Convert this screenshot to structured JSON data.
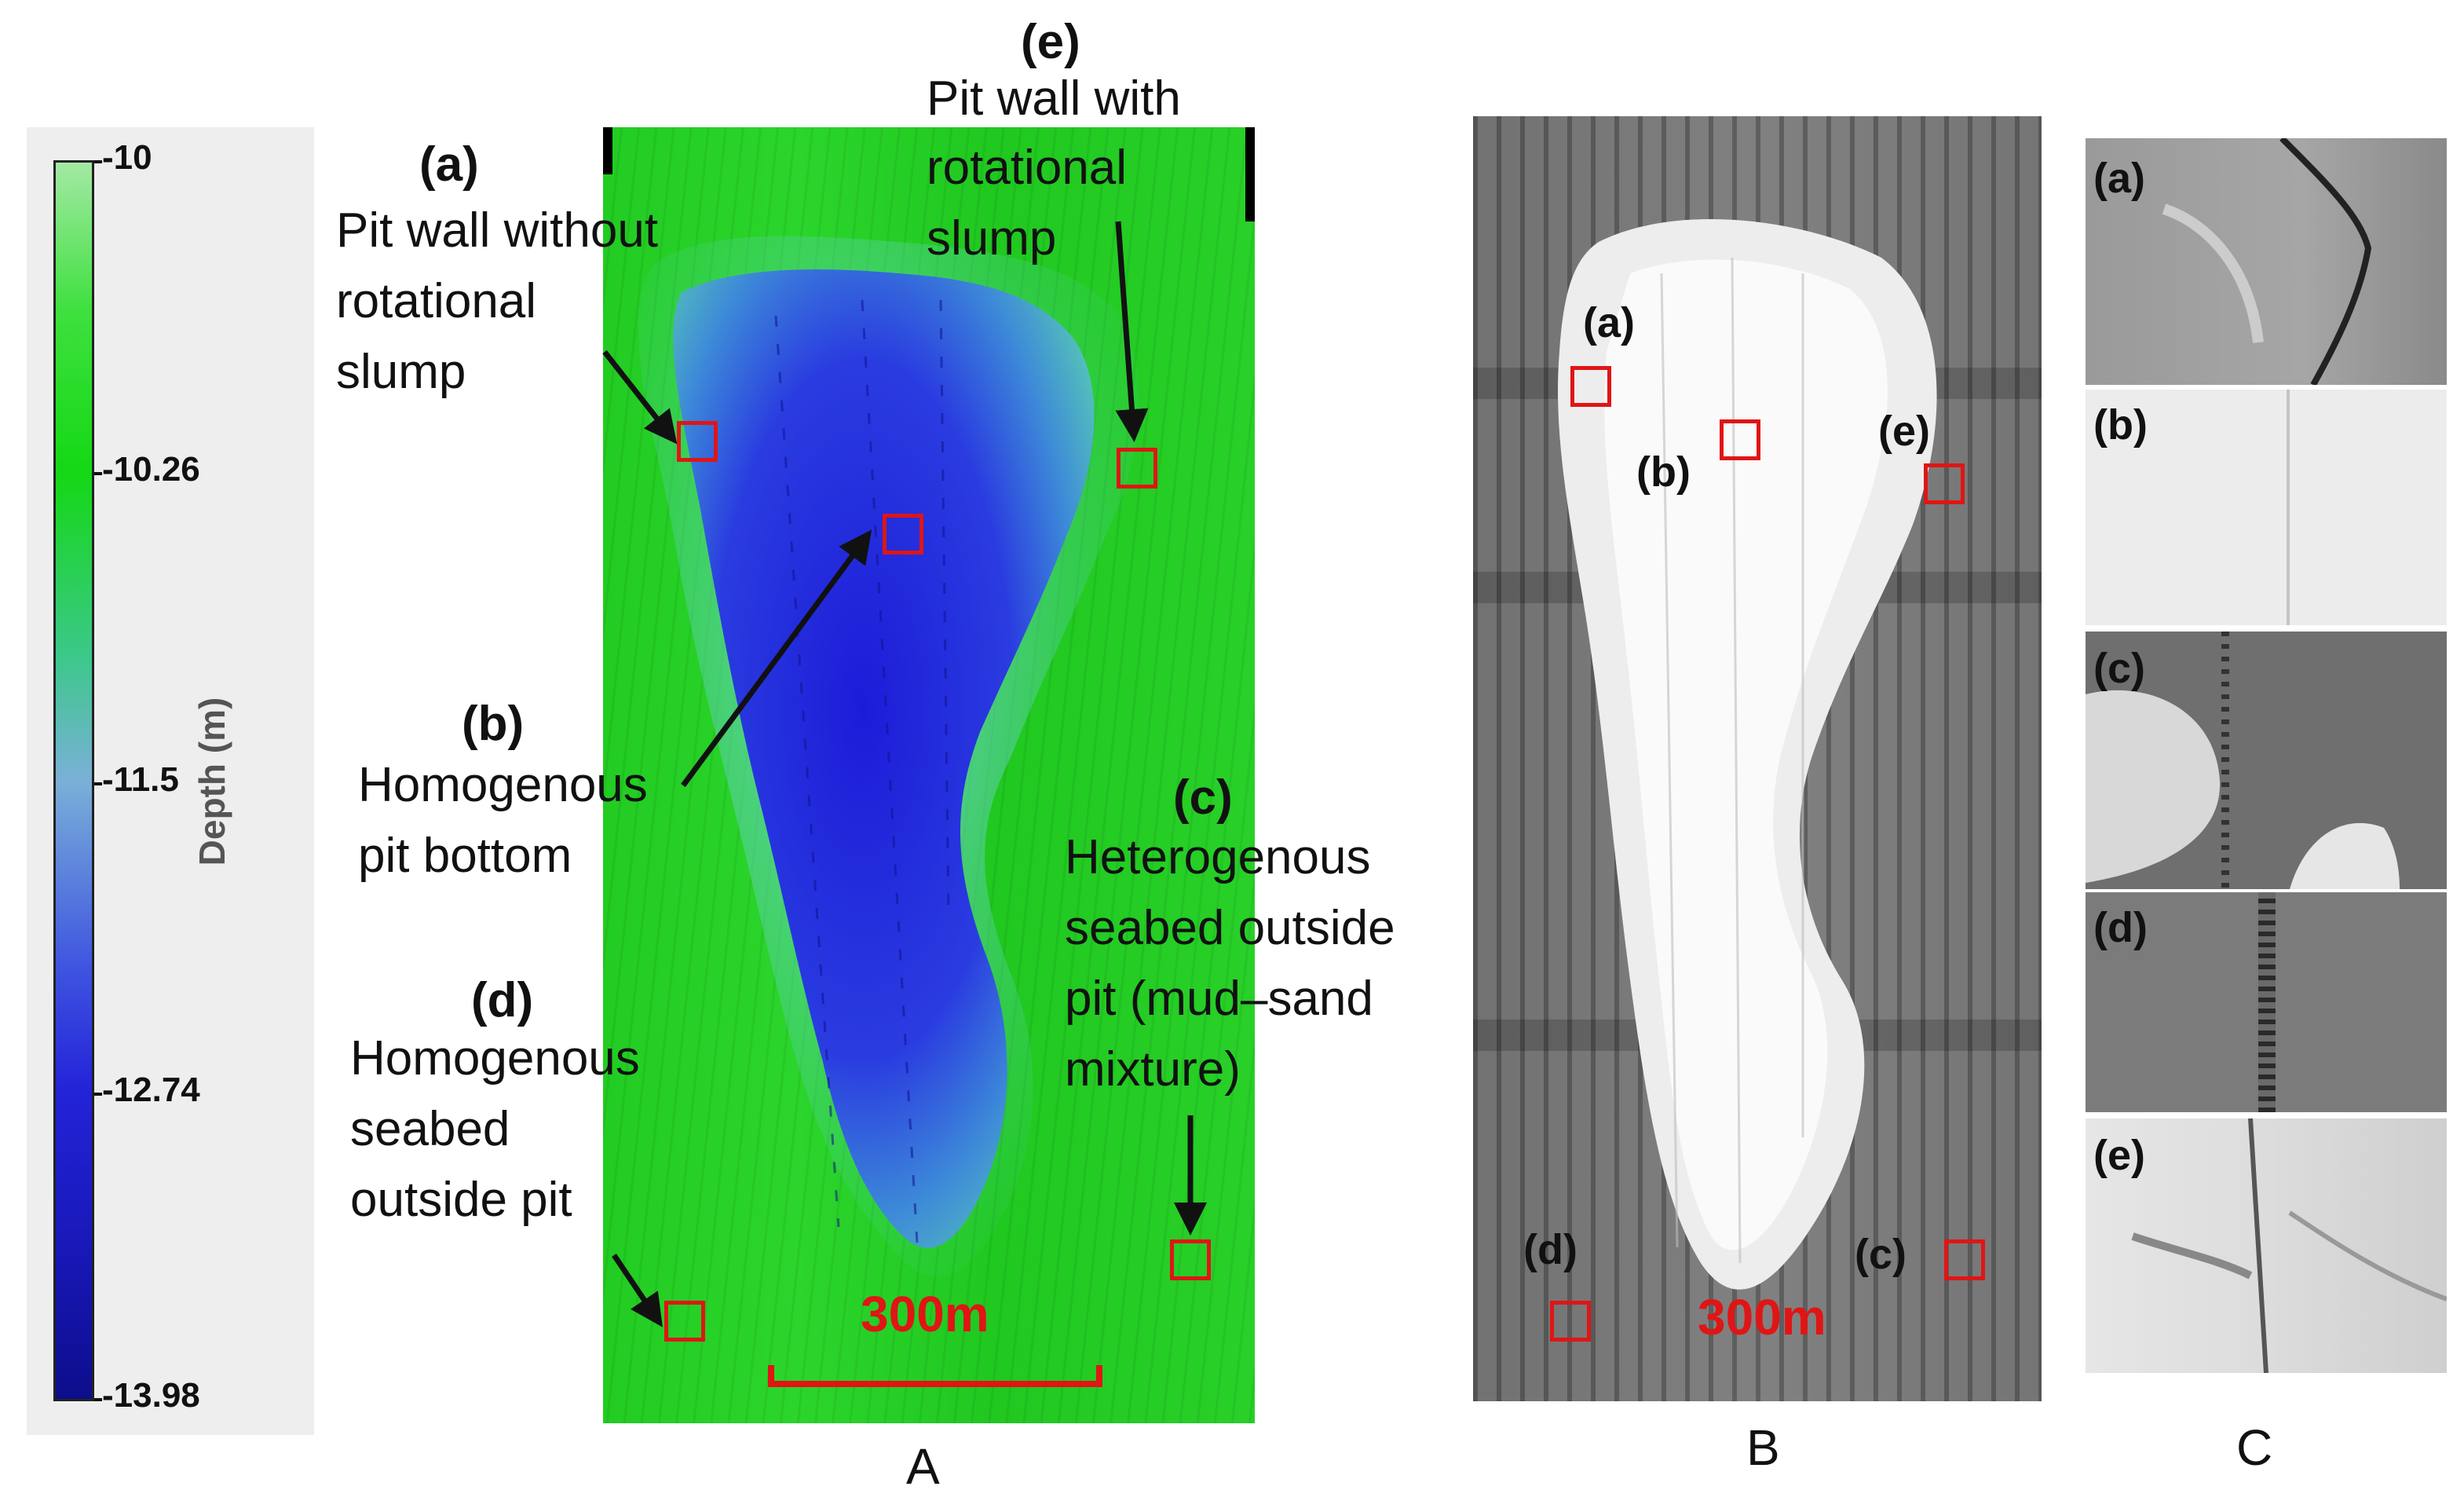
{
  "colorbar": {
    "title": "Depth (m)",
    "ticks": [
      "-10",
      "-10.26",
      "-11.5",
      "-12.74",
      "-13.98"
    ],
    "colors": {
      "top": "#a3e9a3",
      "green": "#18dd18",
      "mid": "#7ab0d8",
      "blue": "#2323d8",
      "bottom": "#0d0d8c"
    }
  },
  "panel_a": {
    "label": "A",
    "scale": "300m",
    "annotations": {
      "a": {
        "tag": "(a)",
        "lines": [
          "Pit wall without",
          "rotational",
          "slump"
        ]
      },
      "b": {
        "tag": "(b)",
        "lines": [
          "Homogenous",
          "pit bottom"
        ]
      },
      "c": {
        "tag": "(c)",
        "lines": [
          "Heterogenous",
          "seabed outside",
          "pit (mud–sand",
          "mixture)"
        ]
      },
      "d": {
        "tag": "(d)",
        "lines": [
          "Homogenous",
          "seabed",
          "outside pit"
        ]
      },
      "e": {
        "tag": "(e)",
        "lines": [
          "Pit wall with",
          "rotational",
          "slump"
        ]
      }
    }
  },
  "panel_b": {
    "label": "B",
    "scale": "300m",
    "tags": [
      "(a)",
      "(b)",
      "(c)",
      "(d)",
      "(e)"
    ]
  },
  "panel_c": {
    "label": "C",
    "tags": [
      "(a)",
      "(b)",
      "(c)",
      "(d)",
      "(e)"
    ]
  },
  "accent": "#e01515"
}
